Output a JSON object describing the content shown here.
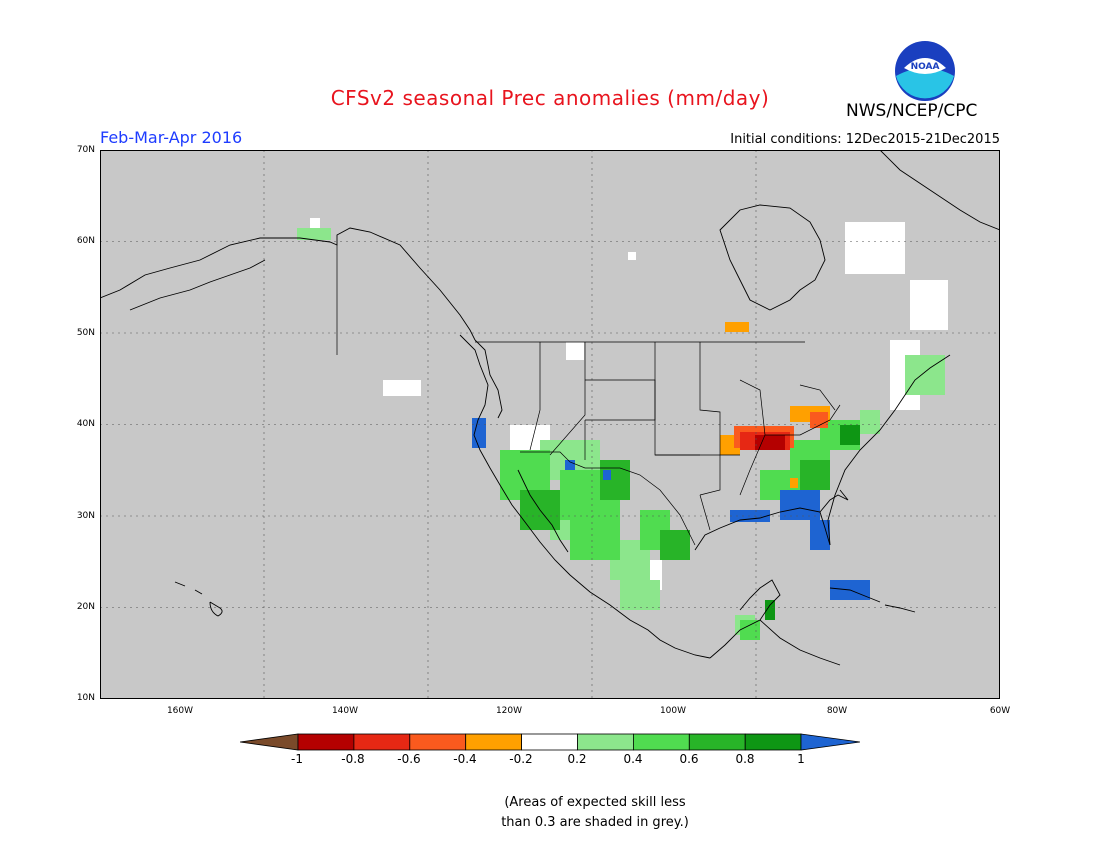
{
  "header": {
    "title": "CFSv2 seasonal Prec anomalies (mm/day)",
    "period": "Feb-Mar-Apr 2016",
    "initial_conditions": "Initial conditions: 12Dec2015-21Dec2015",
    "org": "NWS/NCEP/CPC",
    "logo_text": "NOAA"
  },
  "colors": {
    "title": "#e8141e",
    "period": "#1e3cff",
    "skill_grey": "#c8c8c8",
    "land_outline": "#000000"
  },
  "axes": {
    "lat_labels": [
      "70N",
      "60N",
      "50N",
      "40N",
      "30N",
      "20N",
      "10N"
    ],
    "lon_labels": [
      "160W",
      "140W",
      "120W",
      "100W",
      "80W",
      "60W"
    ]
  },
  "colorbar": {
    "ticks": [
      "-1",
      "-0.8",
      "-0.6",
      "-0.4",
      "-0.2",
      "0.2",
      "0.4",
      "0.6",
      "0.8",
      "1"
    ],
    "colors": [
      "#7a4a2a",
      "#b40000",
      "#e62814",
      "#fa5a1e",
      "#ffa000",
      "#ffffff",
      "#8ce68c",
      "#50dc50",
      "#28b428",
      "#0e9614",
      "#1e64d2"
    ]
  },
  "note": {
    "line1": "(Areas of expected skill less",
    "line2": "than 0.3 are shaded in grey.)"
  }
}
